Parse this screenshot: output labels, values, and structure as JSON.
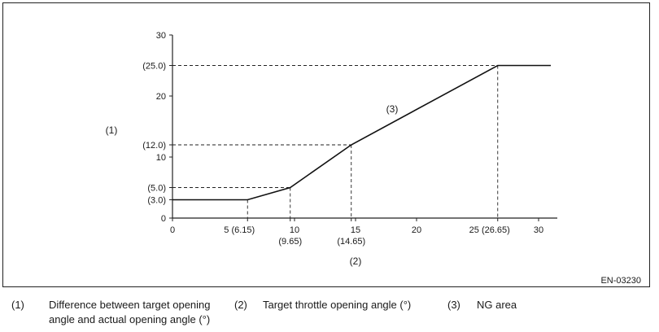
{
  "chart_data": {
    "type": "line",
    "figure_id": "EN-03230",
    "xlim": [
      0,
      31
    ],
    "ylim": [
      0,
      30
    ],
    "x_ticks": [
      {
        "value": 0,
        "label": "0"
      },
      {
        "value": 10,
        "label": "10"
      },
      {
        "value": 15,
        "label": "15"
      },
      {
        "value": 20,
        "label": "20"
      },
      {
        "value": 30,
        "label": "30"
      }
    ],
    "y_ticks": [
      {
        "value": 0,
        "label": "0"
      },
      {
        "value": 10,
        "label": "10"
      },
      {
        "value": 20,
        "label": "20"
      },
      {
        "value": 30,
        "label": "30"
      }
    ],
    "ref_x": [
      {
        "value": 6.15,
        "label": "5 (6.15)"
      },
      {
        "value": 9.65,
        "label": "(9.65)"
      },
      {
        "value": 14.65,
        "label": "(14.65)"
      },
      {
        "value": 26.65,
        "label": "25 (26.65)"
      }
    ],
    "ref_y": [
      {
        "value": 3.0,
        "label": "(3.0)"
      },
      {
        "value": 5.0,
        "label": "(5.0)"
      },
      {
        "value": 12.0,
        "label": "(12.0)"
      },
      {
        "value": 25.0,
        "label": "(25.0)"
      }
    ],
    "guides": [
      {
        "x": 6.15,
        "y": 3.0
      },
      {
        "x": 9.65,
        "y": 5.0
      },
      {
        "x": 14.65,
        "y": 12.0
      },
      {
        "x": 26.65,
        "y": 25.0
      }
    ],
    "series": [
      {
        "x": [
          0,
          6.15,
          9.65,
          14.65,
          26.65,
          31
        ],
        "y": [
          3.0,
          3.0,
          5.0,
          12.0,
          25.0,
          25.0
        ]
      }
    ],
    "ylabel": "(1)",
    "xlabel": "(2)",
    "region_label": "(3)"
  },
  "legend": [
    {
      "num": "(1)",
      "text": [
        "Difference between target opening",
        "angle and actual opening angle (°)"
      ]
    },
    {
      "num": "(2)",
      "text": [
        "Target throttle opening angle (°)"
      ]
    },
    {
      "num": "(3)",
      "text": [
        "NG area"
      ]
    }
  ]
}
